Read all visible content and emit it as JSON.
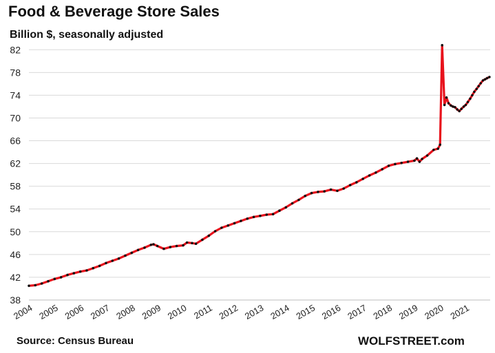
{
  "chart_data": {
    "type": "line",
    "title": "Food & Beverage Store Sales",
    "subtitle": "Billion $, seasonally adjusted",
    "source": "Source: Census Bureau",
    "brand": "WOLFSTREET.com",
    "xlabel": "",
    "ylabel": "",
    "ylim": [
      38,
      83
    ],
    "xlim": [
      2004.0,
      2021.95
    ],
    "y_ticks": [
      "38",
      "42",
      "46",
      "50",
      "54",
      "58",
      "62",
      "66",
      "70",
      "74",
      "78",
      "82"
    ],
    "x_ticks": [
      "2004",
      "2005",
      "2006",
      "2007",
      "2008",
      "2009",
      "2010",
      "2011",
      "2012",
      "2013",
      "2014",
      "2015",
      "2016",
      "2017",
      "2018",
      "2019",
      "2020",
      "2021"
    ],
    "grid": "horizontal",
    "colors": {
      "line": "#e8121c",
      "marker": "#111111",
      "grid": "#d9d9d9"
    },
    "series": [
      {
        "x": [
          2004.0,
          2004.25,
          2004.5,
          2004.75,
          2005.0,
          2005.25,
          2005.5,
          2005.75,
          2006.0,
          2006.25,
          2006.5,
          2006.75,
          2007.0,
          2007.25,
          2007.5,
          2007.75,
          2008.0,
          2008.25,
          2008.5,
          2008.75,
          2008.85,
          2009.0,
          2009.25,
          2009.5,
          2009.75,
          2010.0,
          2010.15,
          2010.35,
          2010.5,
          2010.75,
          2011.0,
          2011.25,
          2011.5,
          2011.75,
          2012.0,
          2012.25,
          2012.5,
          2012.75,
          2013.0,
          2013.25,
          2013.5,
          2013.75,
          2014.0,
          2014.25,
          2014.5,
          2014.75,
          2015.0,
          2015.25,
          2015.5,
          2015.75,
          2016.0,
          2016.25,
          2016.5,
          2016.75,
          2017.0,
          2017.25,
          2017.5,
          2017.75,
          2018.0,
          2018.25,
          2018.5,
          2018.75,
          2019.0,
          2019.1,
          2019.2,
          2019.3,
          2019.5,
          2019.75,
          2019.92,
          2020.0,
          2020.08,
          2020.17,
          2020.25,
          2020.33,
          2020.42,
          2020.5,
          2020.58,
          2020.67,
          2020.75,
          2020.83,
          2020.92,
          2021.0,
          2021.08,
          2021.17,
          2021.25,
          2021.33,
          2021.42,
          2021.5,
          2021.58,
          2021.67,
          2021.75,
          2021.83,
          2021.92
        ],
        "values": [
          40.5,
          40.6,
          40.9,
          41.3,
          41.7,
          42.0,
          42.4,
          42.7,
          43.0,
          43.2,
          43.6,
          44.0,
          44.5,
          44.9,
          45.3,
          45.8,
          46.3,
          46.8,
          47.2,
          47.7,
          47.8,
          47.5,
          47.0,
          47.3,
          47.5,
          47.6,
          48.1,
          48.0,
          47.9,
          48.6,
          49.3,
          50.1,
          50.7,
          51.1,
          51.5,
          51.9,
          52.3,
          52.6,
          52.8,
          53.0,
          53.1,
          53.7,
          54.3,
          55.0,
          55.6,
          56.3,
          56.8,
          57.0,
          57.1,
          57.4,
          57.2,
          57.6,
          58.2,
          58.7,
          59.3,
          59.9,
          60.4,
          61.0,
          61.6,
          61.9,
          62.1,
          62.3,
          62.5,
          62.9,
          62.3,
          62.8,
          63.4,
          64.4,
          64.6,
          65.3,
          82.8,
          72.3,
          73.6,
          72.6,
          72.2,
          72.0,
          71.9,
          71.5,
          71.2,
          71.6,
          72.0,
          72.3,
          72.8,
          73.4,
          74.0,
          74.6,
          75.1,
          75.6,
          76.1,
          76.6,
          76.8,
          77.0,
          77.2
        ]
      }
    ]
  }
}
